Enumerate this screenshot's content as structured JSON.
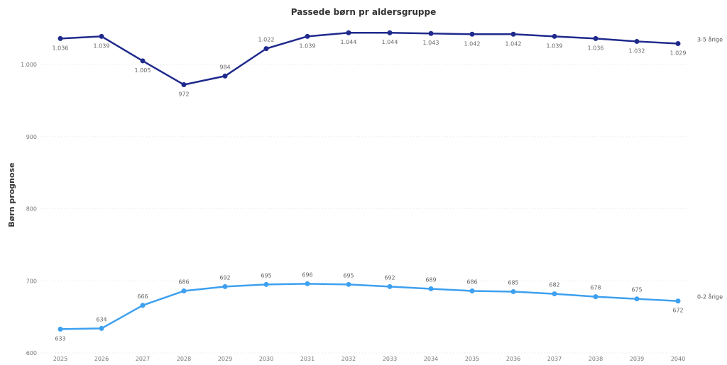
{
  "chart_data": {
    "type": "line",
    "title": "Passede børn pr aldersgruppe",
    "xlabel": "",
    "ylabel": "Børn prognose",
    "x": [
      "2025",
      "2026",
      "2027",
      "2028",
      "2029",
      "2030",
      "2031",
      "2032",
      "2033",
      "2034",
      "2035",
      "2036",
      "2037",
      "2038",
      "2039",
      "2040"
    ],
    "ylim": [
      600,
      1050
    ],
    "yticks": [
      {
        "value": 600,
        "label": "600"
      },
      {
        "value": 700,
        "label": "700"
      },
      {
        "value": 800,
        "label": "800"
      },
      {
        "value": 900,
        "label": "900"
      },
      {
        "value": 1000,
        "label": "1.000"
      }
    ],
    "grid": true,
    "series": [
      {
        "name": "3-5 årige",
        "color": "#1f2a8c",
        "values": [
          1036,
          1039,
          1005,
          972,
          984,
          1022,
          1039,
          1044,
          1044,
          1043,
          1042,
          1042,
          1039,
          1036,
          1032,
          1029
        ],
        "labels": [
          "1.036",
          "1.039",
          "1.005",
          "972",
          "984",
          "1.022",
          "1.039",
          "1.044",
          "1.044",
          "1.043",
          "1.042",
          "1.042",
          "1.039",
          "1.036",
          "1.032",
          "1.029"
        ],
        "label_pos": [
          "below",
          "below",
          "below",
          "below",
          "above",
          "above",
          "below",
          "below",
          "below",
          "below",
          "below",
          "below",
          "below",
          "below",
          "below",
          "below"
        ]
      },
      {
        "name": "0-2 årige",
        "color": "#3da0f0",
        "values": [
          633,
          634,
          666,
          686,
          692,
          695,
          696,
          695,
          692,
          689,
          686,
          685,
          682,
          678,
          675,
          672
        ],
        "labels": [
          "633",
          "634",
          "666",
          "686",
          "692",
          "695",
          "696",
          "695",
          "692",
          "689",
          "686",
          "685",
          "682",
          "678",
          "675",
          "672"
        ],
        "label_pos": [
          "below",
          "above",
          "above",
          "above",
          "above",
          "above",
          "above",
          "above",
          "above",
          "above",
          "above",
          "above",
          "above",
          "above",
          "above",
          "below"
        ]
      }
    ]
  }
}
